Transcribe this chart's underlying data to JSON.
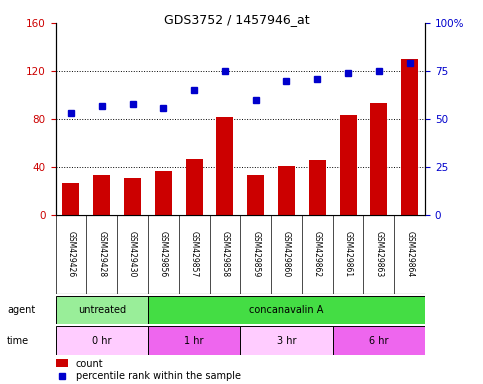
{
  "title": "GDS3752 / 1457946_at",
  "samples": [
    "GSM429426",
    "GSM429428",
    "GSM429430",
    "GSM429856",
    "GSM429857",
    "GSM429858",
    "GSM429859",
    "GSM429860",
    "GSM429862",
    "GSM429861",
    "GSM429863",
    "GSM429864"
  ],
  "counts": [
    27,
    33,
    31,
    37,
    47,
    82,
    33,
    41,
    46,
    83,
    93,
    130
  ],
  "percentile": [
    53,
    57,
    58,
    56,
    65,
    75,
    60,
    70,
    71,
    74,
    75,
    79
  ],
  "ylim_left": [
    0,
    160
  ],
  "ylim_right": [
    0,
    100
  ],
  "yticks_left": [
    0,
    40,
    80,
    120,
    160
  ],
  "yticks_right": [
    0,
    25,
    50,
    75,
    100
  ],
  "ytick_labels_left": [
    "0",
    "40",
    "80",
    "120",
    "160"
  ],
  "ytick_labels_right": [
    "0",
    "25",
    "50",
    "75",
    "100%"
  ],
  "bar_color": "#cc0000",
  "dot_color": "#0000cc",
  "grid_color": "#000000",
  "agent_groups": [
    {
      "label": "untreated",
      "start": 0,
      "end": 3,
      "color": "#99ee99"
    },
    {
      "label": "concanavalin A",
      "start": 3,
      "end": 12,
      "color": "#44dd44"
    }
  ],
  "time_groups": [
    {
      "label": "0 hr",
      "start": 0,
      "end": 3,
      "color": "#ffccff"
    },
    {
      "label": "1 hr",
      "start": 3,
      "end": 6,
      "color": "#ee66ee"
    },
    {
      "label": "3 hr",
      "start": 6,
      "end": 9,
      "color": "#ffccff"
    },
    {
      "label": "6 hr",
      "start": 9,
      "end": 12,
      "color": "#ee66ee"
    }
  ],
  "xlabel_agent": "agent",
  "xlabel_time": "time",
  "legend_count_label": "count",
  "legend_pct_label": "percentile rank within the sample",
  "bg_color": "#ffffff",
  "plot_bg_color": "#ffffff",
  "tick_area_color": "#cccccc"
}
